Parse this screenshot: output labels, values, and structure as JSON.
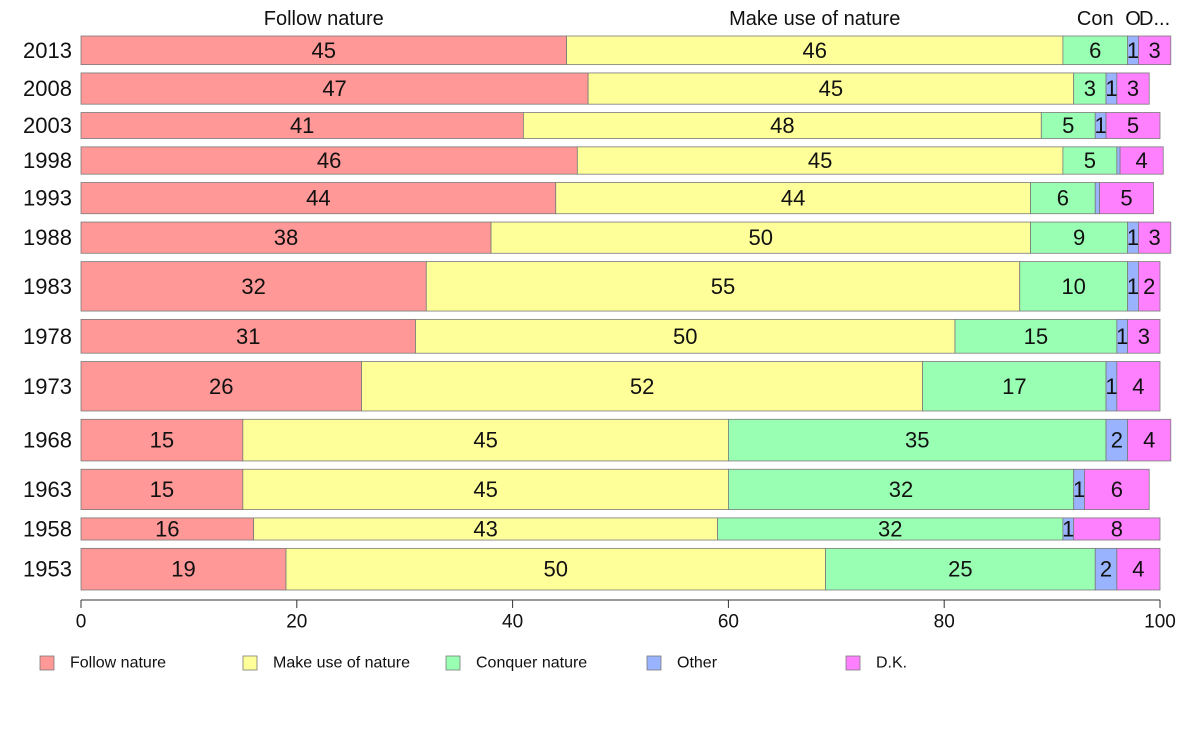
{
  "chart_data": {
    "type": "bar",
    "orientation": "horizontal",
    "stacked": true,
    "categories": [
      "2013",
      "2008",
      "2003",
      "1998",
      "1993",
      "1988",
      "1983",
      "1978",
      "1973",
      "1968",
      "1963",
      "1958",
      "1953"
    ],
    "series": [
      {
        "name": "Follow nature",
        "color": "#ff9896",
        "values": [
          45,
          47,
          41,
          46,
          44,
          38,
          32,
          31,
          26,
          15,
          15,
          16,
          19
        ]
      },
      {
        "name": "Make use of nature",
        "color": "#ffff99",
        "values": [
          46,
          45,
          48,
          45,
          44,
          50,
          55,
          50,
          52,
          45,
          45,
          43,
          50
        ]
      },
      {
        "name": "Conquer nature",
        "color": "#99ffb3",
        "values": [
          6,
          3,
          5,
          5,
          6,
          9,
          10,
          15,
          17,
          35,
          32,
          32,
          25
        ]
      },
      {
        "name": "Other",
        "color": "#99b3ff",
        "values": [
          1,
          1,
          1,
          0.3,
          0.4,
          1,
          1,
          1,
          1,
          2,
          1,
          1,
          2
        ]
      },
      {
        "name": "D.K.",
        "color": "#ff80ff",
        "values": [
          3,
          3,
          5,
          4,
          5,
          3,
          2,
          3,
          4,
          4,
          6,
          8,
          4
        ]
      }
    ],
    "value_labels": [
      [
        "45",
        "46",
        "6",
        "1",
        "3"
      ],
      [
        "47",
        "45",
        "3",
        "1",
        "3"
      ],
      [
        "41",
        "48",
        "5",
        "1",
        "5"
      ],
      [
        "46",
        "45",
        "5",
        "",
        "4"
      ],
      [
        "44",
        "44",
        "6",
        "",
        "5"
      ],
      [
        "38",
        "50",
        "9",
        "1",
        "3"
      ],
      [
        "32",
        "55",
        "10",
        "1",
        "2"
      ],
      [
        "31",
        "50",
        "15",
        "1",
        "3"
      ],
      [
        "26",
        "52",
        "17",
        "1",
        "4"
      ],
      [
        "15",
        "45",
        "35",
        "2",
        "4"
      ],
      [
        "15",
        "45",
        "32",
        "1",
        "6"
      ],
      [
        "16",
        "43",
        "32",
        "1",
        "8"
      ],
      [
        "19",
        "50",
        "25",
        "2",
        "4"
      ]
    ],
    "bar_widths": [
      1.1,
      1.2,
      1.0,
      1.05,
      1.2,
      1.2,
      1.9,
      1.3,
      1.9,
      1.6,
      1.55,
      0.85,
      1.6
    ],
    "top_labels": [
      "Follow nature",
      "Make use of nature",
      "Con",
      "O",
      "D..."
    ],
    "x_ticks": [
      "0",
      "20",
      "40",
      "60",
      "80",
      "100"
    ],
    "xlim": [
      0,
      100
    ],
    "legend_position": "bottom",
    "grid": false
  }
}
